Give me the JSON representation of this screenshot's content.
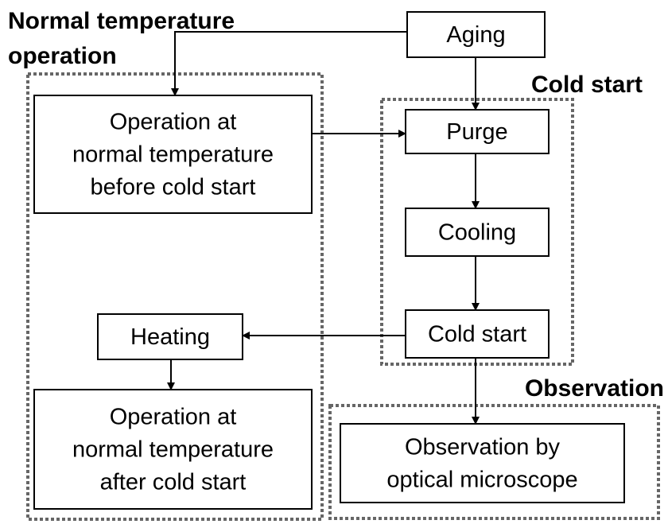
{
  "groups": [
    {
      "label": [
        "Normal temperature",
        "operation"
      ]
    },
    {
      "label": [
        "Cold start"
      ]
    },
    {
      "label": [
        "Observation"
      ]
    }
  ],
  "nodes": [
    {
      "label": [
        "Aging"
      ]
    },
    {
      "label": [
        "Operation at",
        "normal temperature",
        "before cold start"
      ]
    },
    {
      "label": [
        "Purge"
      ]
    },
    {
      "label": [
        "Cooling"
      ]
    },
    {
      "label": [
        "Cold start"
      ]
    },
    {
      "label": [
        "Heating"
      ]
    },
    {
      "label": [
        "Operation at",
        "normal temperature",
        "after cold start"
      ]
    },
    {
      "label": [
        "Observation by",
        "optical microscope"
      ]
    }
  ]
}
